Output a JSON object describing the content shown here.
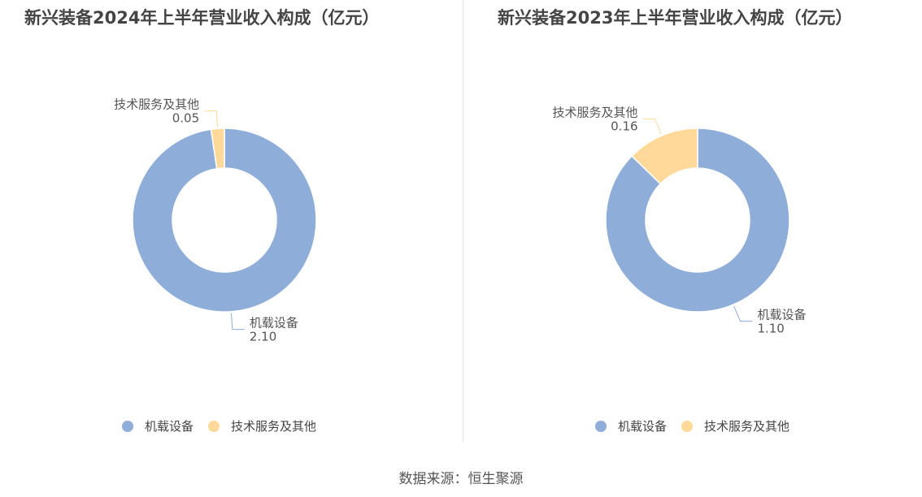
{
  "colors": {
    "机载设备": "#8eadd9",
    "技术服务及其他": "#ffd99a"
  },
  "chart_data": [
    {
      "type": "pie",
      "donut": true,
      "title": "新兴装备2024年上半年营业收入构成（亿元）",
      "categories": [
        "机载设备",
        "技术服务及其他"
      ],
      "values": [
        2.1,
        0.05
      ],
      "value_labels": [
        "2.10",
        "0.05"
      ],
      "legend": [
        "机载设备",
        "技术服务及其他"
      ],
      "legend_position": "bottom"
    },
    {
      "type": "pie",
      "donut": true,
      "title": "新兴装备2023年上半年营业收入构成（亿元）",
      "categories": [
        "机载设备",
        "技术服务及其他"
      ],
      "values": [
        1.1,
        0.16
      ],
      "value_labels": [
        "1.10",
        "0.16"
      ],
      "legend": [
        "机载设备",
        "技术服务及其他"
      ],
      "legend_position": "bottom"
    }
  ],
  "source": "数据来源：恒生聚源"
}
